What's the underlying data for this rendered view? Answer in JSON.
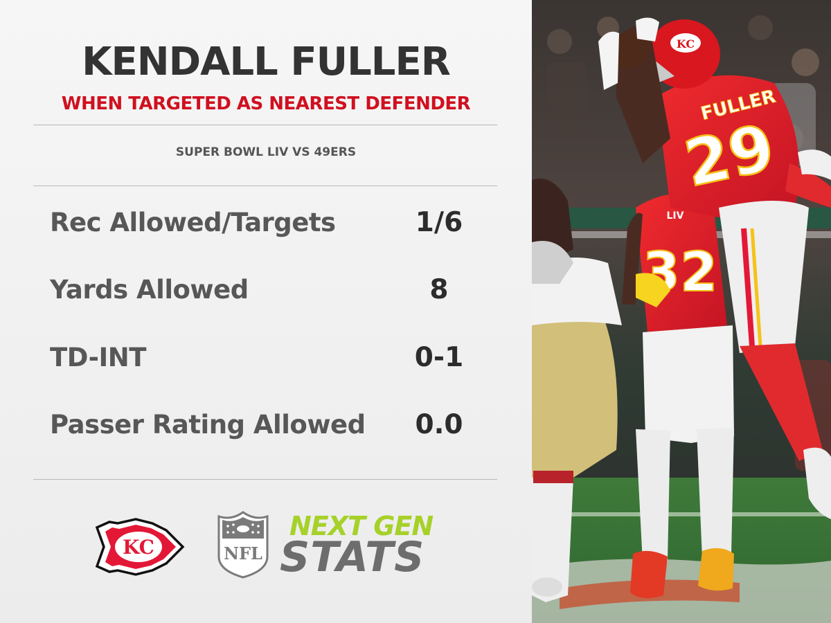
{
  "title": "KENDALL FULLER",
  "subtitle": "WHEN TARGETED AS NEAREST DEFENDER",
  "game": "SUPER BOWL LIV VS 49ERS",
  "stats": [
    {
      "label": "Rec Allowed/Targets",
      "value": "1/6"
    },
    {
      "label": "Yards Allowed",
      "value": "8"
    },
    {
      "label": "TD-INT",
      "value": "0-1"
    },
    {
      "label": "Passer Rating Allowed",
      "value": "0.0"
    }
  ],
  "logos": {
    "team_mark": "KC",
    "league_mark": "NFL",
    "brand_line1": "NEXT GEN",
    "brand_line2": "STATS"
  },
  "photo": {
    "jersey_name": "FULLER",
    "jersey_number_main": "29",
    "jersey_number_teammate": "32",
    "patch_text": "LIV",
    "helmet_mark": "KC"
  },
  "colors": {
    "subtitle_red": "#d0101f",
    "title_dark": "#333333",
    "stat_label": "#575757",
    "stat_value": "#2c2c2c",
    "ngs_green": "#a6d12a",
    "ngs_gray": "#6d6d6d",
    "chiefs_red": "#e31837",
    "chiefs_gold": "#ffb612"
  }
}
